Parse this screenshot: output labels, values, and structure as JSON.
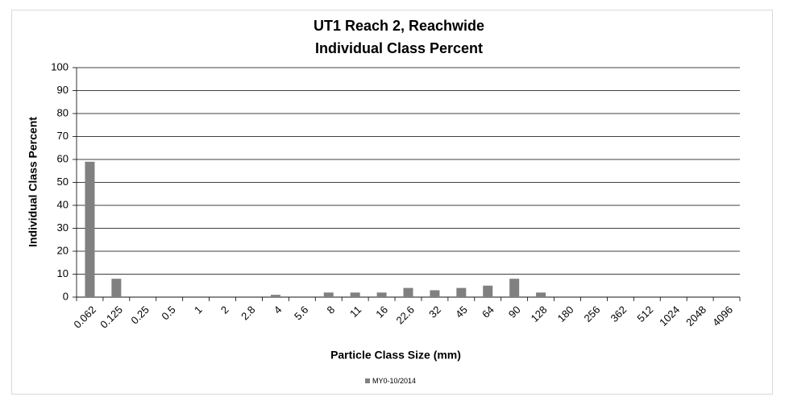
{
  "chart_data": {
    "type": "bar",
    "title": "UT1 Reach 2, Reachwide",
    "subtitle": "Individual Class Percent",
    "x_label": "Particle Class Size (mm)",
    "y_label": "Individual Class Percent",
    "categories": [
      "0.062",
      "0.125",
      "0.25",
      "0.5",
      "1",
      "2",
      "2.8",
      "4",
      "5.6",
      "8",
      "11",
      "16",
      "22.6",
      "32",
      "45",
      "64",
      "90",
      "128",
      "180",
      "256",
      "362",
      "512",
      "1024",
      "2048",
      "4096"
    ],
    "series": [
      {
        "name": "MY0-10/2014",
        "color": "#808080",
        "values": [
          59,
          8,
          0,
          0,
          0,
          0,
          0,
          1,
          0,
          2,
          2,
          2,
          4,
          3,
          4,
          5,
          8,
          2,
          0,
          0,
          0,
          0,
          0,
          0,
          0
        ]
      }
    ],
    "ylim": [
      0,
      100
    ],
    "yticks": [
      0,
      10,
      20,
      30,
      40,
      50,
      60,
      70,
      80,
      90,
      100
    ],
    "grid": true,
    "legend": "bottom"
  }
}
